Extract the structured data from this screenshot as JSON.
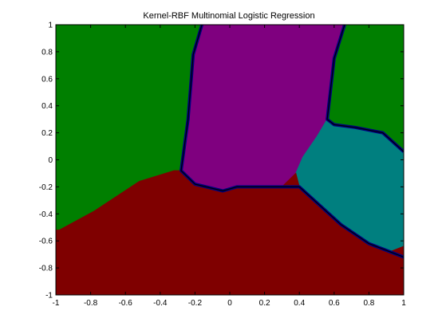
{
  "chart_data": {
    "type": "heatmap",
    "title": "Kernel-RBF Multinomial Logistic Regression",
    "xlabel": "",
    "ylabel": "",
    "xlim": [
      -1,
      1
    ],
    "ylim": [
      -1,
      1
    ],
    "xticks": [
      "-1",
      "-0.8",
      "-0.6",
      "-0.4",
      "-0.2",
      "0",
      "0.2",
      "0.4",
      "0.6",
      "0.8",
      "1"
    ],
    "yticks": [
      "1",
      "0.8",
      "0.6",
      "0.4",
      "0.2",
      "0",
      "-0.2",
      "-0.4",
      "-0.6",
      "-0.8",
      "-1"
    ],
    "grid": false,
    "colors": {
      "green": "#007f00",
      "purple": "#7f007f",
      "teal": "#007f7f",
      "maroon": "#7f0000",
      "boundary": "#00007f"
    },
    "regions": [
      {
        "class": "green-left",
        "color": "green",
        "polygon": [
          [
            -1,
            1
          ],
          [
            -0.16,
            1
          ],
          [
            -0.21,
            0.78
          ],
          [
            -0.24,
            0.3
          ],
          [
            -0.28,
            -0.08
          ],
          [
            -0.32,
            -0.08
          ],
          [
            -0.52,
            -0.16
          ],
          [
            -0.78,
            -0.38
          ],
          [
            -0.98,
            -0.52
          ],
          [
            -1,
            -0.52
          ]
        ]
      },
      {
        "class": "purple-center",
        "color": "purple",
        "polygon": [
          [
            -0.16,
            1
          ],
          [
            0.66,
            1
          ],
          [
            0.6,
            0.75
          ],
          [
            0.56,
            0.3
          ],
          [
            0.5,
            0.17
          ],
          [
            0.42,
            0.02
          ],
          [
            0.38,
            -0.1
          ],
          [
            0.3,
            -0.2
          ],
          [
            0.04,
            -0.2
          ],
          [
            -0.04,
            -0.23
          ],
          [
            -0.2,
            -0.18
          ],
          [
            -0.28,
            -0.08
          ],
          [
            -0.24,
            0.3
          ],
          [
            -0.21,
            0.78
          ]
        ]
      },
      {
        "class": "green-right",
        "color": "green",
        "polygon": [
          [
            0.66,
            1
          ],
          [
            1,
            1
          ],
          [
            1,
            0.06
          ],
          [
            0.88,
            0.2
          ],
          [
            0.72,
            0.24
          ],
          [
            0.6,
            0.26
          ],
          [
            0.56,
            0.3
          ],
          [
            0.6,
            0.75
          ]
        ]
      },
      {
        "class": "teal-right",
        "color": "teal",
        "polygon": [
          [
            0.56,
            0.3
          ],
          [
            0.6,
            0.26
          ],
          [
            0.72,
            0.24
          ],
          [
            0.88,
            0.2
          ],
          [
            1,
            0.06
          ],
          [
            1,
            -0.64
          ],
          [
            0.92,
            -0.68
          ],
          [
            0.8,
            -0.62
          ],
          [
            0.64,
            -0.48
          ],
          [
            0.4,
            -0.2
          ],
          [
            0.38,
            -0.1
          ],
          [
            0.42,
            0.02
          ],
          [
            0.5,
            0.17
          ]
        ]
      },
      {
        "class": "maroon-bottom",
        "color": "maroon",
        "polygon": [
          [
            -1,
            -0.52
          ],
          [
            -0.98,
            -0.52
          ],
          [
            -0.78,
            -0.38
          ],
          [
            -0.52,
            -0.16
          ],
          [
            -0.32,
            -0.08
          ],
          [
            -0.28,
            -0.08
          ],
          [
            -0.2,
            -0.18
          ],
          [
            -0.04,
            -0.23
          ],
          [
            0.04,
            -0.2
          ],
          [
            0.3,
            -0.2
          ],
          [
            0.38,
            -0.1
          ],
          [
            0.4,
            -0.2
          ],
          [
            0.64,
            -0.48
          ],
          [
            0.8,
            -0.62
          ],
          [
            0.92,
            -0.68
          ],
          [
            1,
            -0.64
          ],
          [
            1,
            -0.74
          ],
          [
            0.96,
            -0.72
          ],
          [
            0.96,
            -0.7
          ],
          [
            1,
            -0.74
          ],
          [
            1,
            -1
          ],
          [
            -1,
            -1
          ]
        ]
      }
    ],
    "boundaries": [
      [
        [
          -0.16,
          1
        ],
        [
          -0.21,
          0.78
        ],
        [
          -0.24,
          0.3
        ],
        [
          -0.28,
          -0.08
        ],
        [
          -0.2,
          -0.18
        ],
        [
          -0.04,
          -0.23
        ],
        [
          0.04,
          -0.2
        ],
        [
          0.3,
          -0.2
        ],
        [
          0.4,
          -0.2
        ],
        [
          0.64,
          -0.48
        ],
        [
          0.8,
          -0.62
        ],
        [
          0.92,
          -0.68
        ],
        [
          1,
          -0.72
        ]
      ],
      [
        [
          0.66,
          1
        ],
        [
          0.6,
          0.75
        ],
        [
          0.56,
          0.3
        ],
        [
          0.6,
          0.26
        ],
        [
          0.72,
          0.24
        ],
        [
          0.88,
          0.2
        ],
        [
          1,
          0.06
        ]
      ]
    ]
  }
}
